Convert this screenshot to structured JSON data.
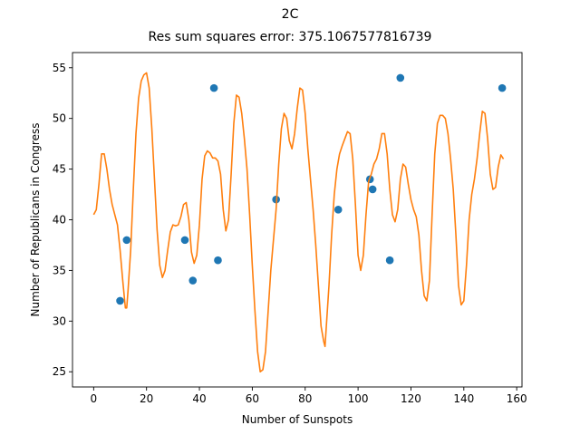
{
  "figure": {
    "suptitle": "2C",
    "subtitle": "Res sum squares error: 375.1067577816739"
  },
  "chart_data": {
    "type": "scatter",
    "title": "Res sum squares error: 375.1067577816739",
    "suptitle": "2C",
    "xlabel": "Number of Sunspots",
    "ylabel": "Number of Republicans in Congress",
    "xlim": [
      -8,
      162
    ],
    "ylim": [
      23.5,
      56.5
    ],
    "xticks": [
      0,
      20,
      40,
      60,
      80,
      100,
      120,
      140,
      160
    ],
    "yticks": [
      25,
      30,
      35,
      40,
      45,
      50,
      55
    ],
    "grid": false,
    "legend": "none",
    "series": [
      {
        "kind": "scatter",
        "color": "#1f77b4",
        "points": [
          [
            10,
            32
          ],
          [
            12.5,
            38
          ],
          [
            34.5,
            38
          ],
          [
            37.5,
            34
          ],
          [
            45.5,
            53
          ],
          [
            47,
            36
          ],
          [
            69,
            42
          ],
          [
            92.5,
            41
          ],
          [
            104.5,
            44
          ],
          [
            105.5,
            43
          ],
          [
            112,
            36
          ],
          [
            116,
            54
          ],
          [
            154.5,
            53
          ]
        ]
      },
      {
        "kind": "line",
        "color": "#ff7f0e",
        "points": [
          [
            0,
            40.5
          ],
          [
            1,
            41
          ],
          [
            2,
            43.5
          ],
          [
            3,
            46.5
          ],
          [
            4,
            46.5
          ],
          [
            5,
            45
          ],
          [
            6,
            43
          ],
          [
            7,
            41.5
          ],
          [
            8,
            40.5
          ],
          [
            9,
            39.5
          ],
          [
            10,
            37
          ],
          [
            11,
            34
          ],
          [
            12,
            31.3
          ],
          [
            12.5,
            31.3
          ],
          [
            13,
            33
          ],
          [
            14,
            37
          ],
          [
            15,
            43
          ],
          [
            16,
            48.5
          ],
          [
            17,
            52
          ],
          [
            18,
            53.7
          ],
          [
            19,
            54.3
          ],
          [
            20,
            54.5
          ],
          [
            21,
            53
          ],
          [
            22,
            49
          ],
          [
            23,
            44
          ],
          [
            24,
            39
          ],
          [
            25,
            35.5
          ],
          [
            26,
            34.3
          ],
          [
            27,
            35
          ],
          [
            28,
            37
          ],
          [
            29,
            38.8
          ],
          [
            30,
            39.5
          ],
          [
            31,
            39.4
          ],
          [
            32,
            39.5
          ],
          [
            33,
            40.3
          ],
          [
            34,
            41.5
          ],
          [
            35,
            41.7
          ],
          [
            36,
            40
          ],
          [
            37,
            36.8
          ],
          [
            38,
            35.7
          ],
          [
            39,
            36.5
          ],
          [
            40,
            39.5
          ],
          [
            41,
            44
          ],
          [
            42,
            46.3
          ],
          [
            43,
            46.8
          ],
          [
            44,
            46.6
          ],
          [
            45,
            46.1
          ],
          [
            46,
            46.1
          ],
          [
            47,
            45.8
          ],
          [
            48,
            44.5
          ],
          [
            49,
            41
          ],
          [
            50,
            38.9
          ],
          [
            51,
            40
          ],
          [
            52,
            44.5
          ],
          [
            53,
            49.5
          ],
          [
            54,
            52.3
          ],
          [
            55,
            52.1
          ],
          [
            56,
            50.5
          ],
          [
            57,
            48
          ],
          [
            58,
            45
          ],
          [
            59,
            40.5
          ],
          [
            60,
            35.5
          ],
          [
            61,
            31
          ],
          [
            62,
            27
          ],
          [
            63,
            25
          ],
          [
            64,
            25.2
          ],
          [
            65,
            27
          ],
          [
            66,
            31
          ],
          [
            67,
            35
          ],
          [
            68,
            38
          ],
          [
            69,
            41
          ],
          [
            70,
            45.5
          ],
          [
            71,
            49
          ],
          [
            72,
            50.5
          ],
          [
            73,
            50
          ],
          [
            74,
            47.8
          ],
          [
            75,
            47
          ],
          [
            76,
            48.5
          ],
          [
            77,
            51
          ],
          [
            78,
            53
          ],
          [
            79,
            52.8
          ],
          [
            80,
            50.5
          ],
          [
            81,
            47
          ],
          [
            82,
            44
          ],
          [
            83,
            41
          ],
          [
            84,
            37.5
          ],
          [
            85,
            33.5
          ],
          [
            86,
            29.5
          ],
          [
            87,
            28
          ],
          [
            87.5,
            27.5
          ],
          [
            88,
            29.5
          ],
          [
            89,
            33.5
          ],
          [
            90,
            38.5
          ],
          [
            91,
            42.5
          ],
          [
            92,
            45
          ],
          [
            93,
            46.5
          ],
          [
            94,
            47.3
          ],
          [
            95,
            48
          ],
          [
            96,
            48.7
          ],
          [
            97,
            48.5
          ],
          [
            98,
            46
          ],
          [
            99,
            41.5
          ],
          [
            100,
            36.5
          ],
          [
            101,
            35
          ],
          [
            102,
            36.5
          ],
          [
            103,
            40.5
          ],
          [
            104,
            43.8
          ],
          [
            105,
            44.5
          ],
          [
            106,
            45.5
          ],
          [
            107,
            46
          ],
          [
            108,
            47
          ],
          [
            109,
            48.5
          ],
          [
            110,
            48.5
          ],
          [
            111,
            46.5
          ],
          [
            112,
            43
          ],
          [
            113,
            40.5
          ],
          [
            114,
            39.8
          ],
          [
            115,
            41
          ],
          [
            116,
            44
          ],
          [
            117,
            45.5
          ],
          [
            118,
            45.2
          ],
          [
            119,
            43.5
          ],
          [
            120,
            42
          ],
          [
            121,
            41
          ],
          [
            122,
            40.3
          ],
          [
            123,
            38.5
          ],
          [
            124,
            35
          ],
          [
            125,
            32.5
          ],
          [
            126,
            32
          ],
          [
            127,
            34
          ],
          [
            128,
            40.5
          ],
          [
            129,
            46.5
          ],
          [
            130,
            49.5
          ],
          [
            131,
            50.3
          ],
          [
            132,
            50.3
          ],
          [
            133,
            50
          ],
          [
            134,
            48.5
          ],
          [
            135,
            46
          ],
          [
            136,
            43
          ],
          [
            137,
            38.5
          ],
          [
            138,
            33.5
          ],
          [
            139,
            31.6
          ],
          [
            140,
            32
          ],
          [
            141,
            35.5
          ],
          [
            142,
            40
          ],
          [
            143,
            42.5
          ],
          [
            144,
            44
          ],
          [
            145,
            46
          ],
          [
            146,
            48.5
          ],
          [
            147,
            50.7
          ],
          [
            148,
            50.5
          ],
          [
            149,
            48
          ],
          [
            150,
            44.5
          ],
          [
            151,
            43
          ],
          [
            152,
            43.2
          ],
          [
            153,
            45.2
          ],
          [
            154,
            46.4
          ],
          [
            155,
            46
          ]
        ]
      }
    ]
  }
}
